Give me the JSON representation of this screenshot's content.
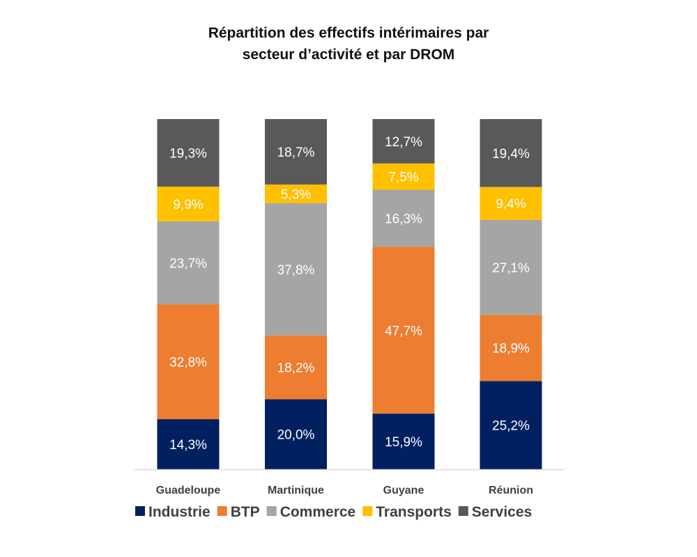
{
  "chart_data": {
    "type": "bar",
    "stacked": true,
    "title_line1": "Répartition des effectifs intérimaires par",
    "title_line2": "secteur d’activité et par DROM",
    "categories": [
      "Guadeloupe",
      "Martinique",
      "Guyane",
      "Réunion"
    ],
    "series": [
      {
        "name": "Industrie",
        "color": "#002060",
        "values": [
          14.3,
          20.0,
          15.9,
          25.2
        ],
        "labels": [
          "14,3%",
          "20,0%",
          "15,9%",
          "25,2%"
        ]
      },
      {
        "name": "BTP",
        "color": "#ED7D31",
        "values": [
          32.8,
          18.2,
          47.7,
          18.9
        ],
        "labels": [
          "32,8%",
          "18,2%",
          "47,7%",
          "18,9%"
        ]
      },
      {
        "name": "Commerce",
        "color": "#A5A5A5",
        "values": [
          23.7,
          37.8,
          16.3,
          27.1
        ],
        "labels": [
          "23,7%",
          "37,8%",
          "16,3%",
          "27,1%"
        ]
      },
      {
        "name": "Transports",
        "color": "#FFC000",
        "values": [
          9.9,
          5.3,
          7.5,
          9.4
        ],
        "labels": [
          "9,9%",
          "5,3%",
          "7,5%",
          "9,4%"
        ]
      },
      {
        "name": "Services",
        "color": "#595959",
        "values": [
          19.3,
          18.7,
          12.7,
          19.4
        ],
        "labels": [
          "19,3%",
          "18,7%",
          "12,7%",
          "19,4%"
        ]
      }
    ],
    "ylim": [
      0,
      100
    ],
    "grid": false,
    "legend": "bottom"
  }
}
